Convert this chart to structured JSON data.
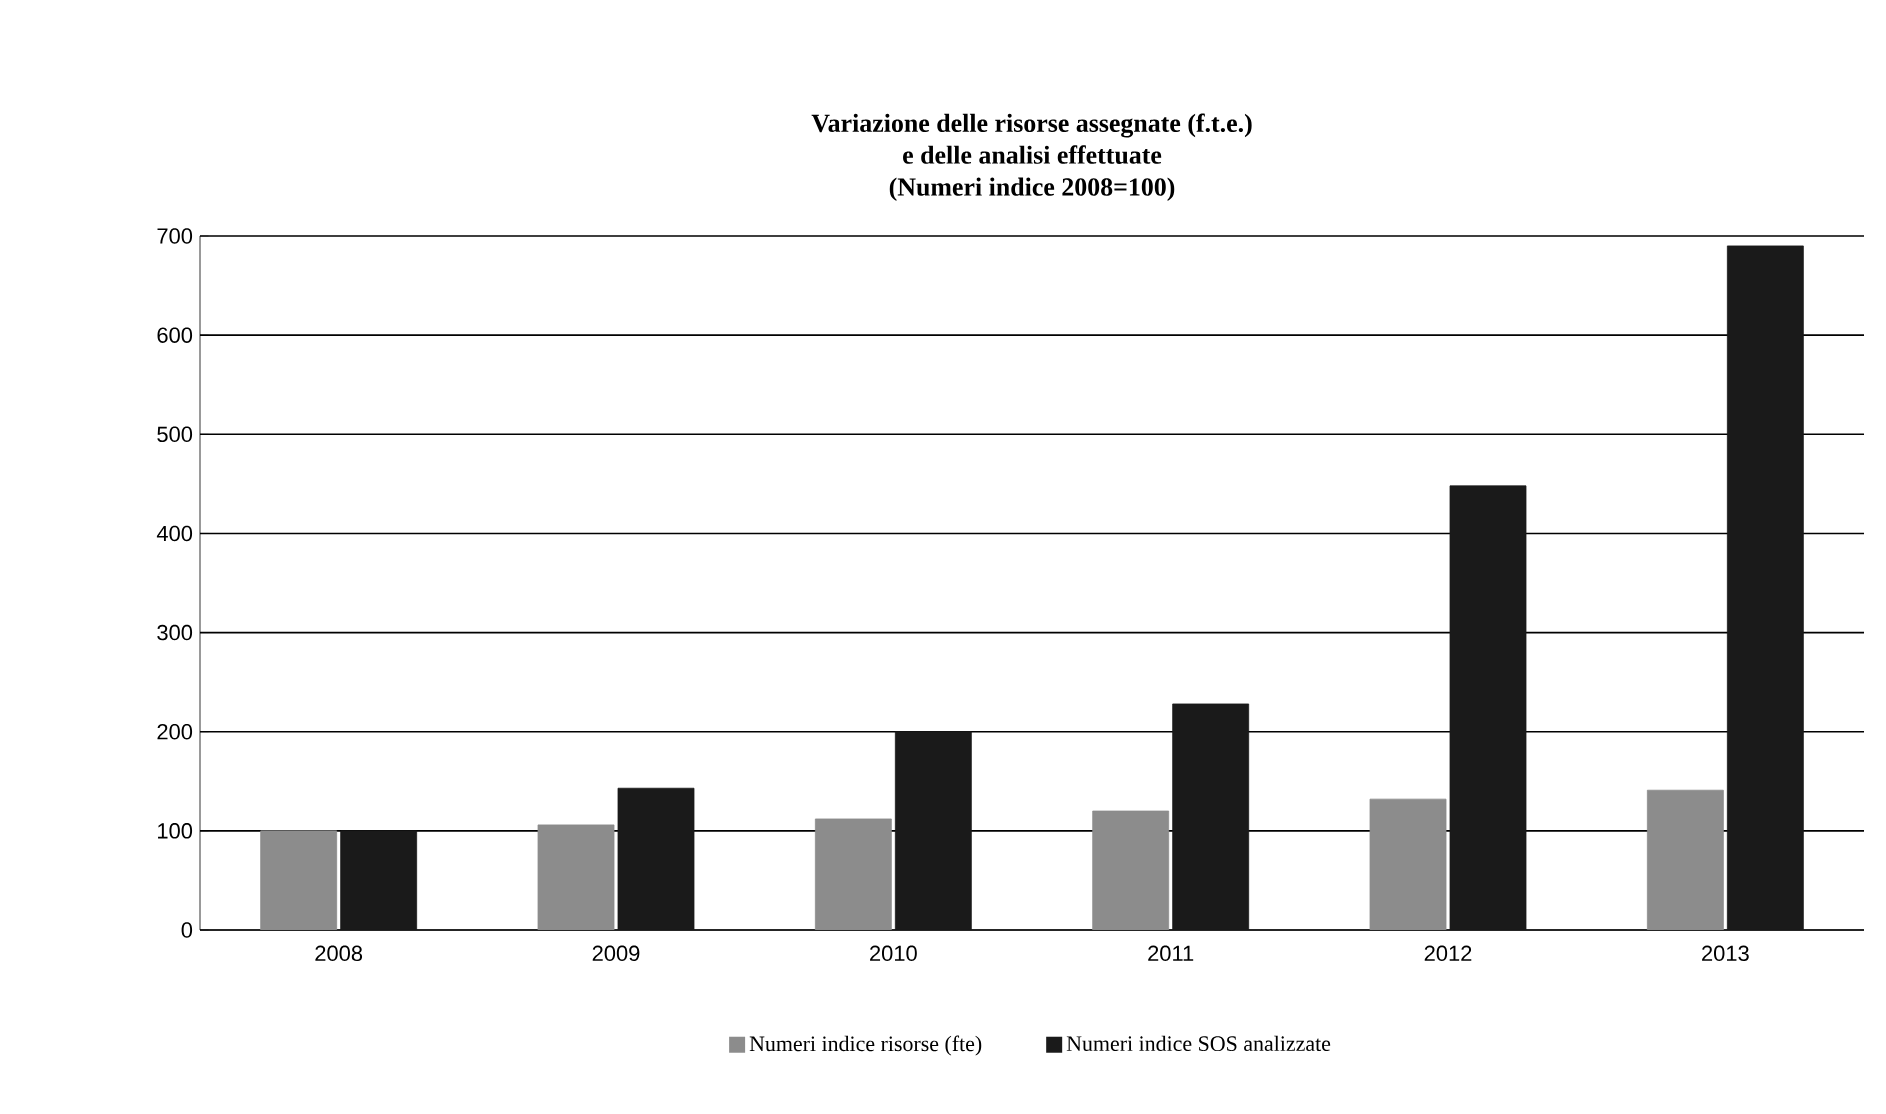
{
  "chart_data": {
    "type": "bar",
    "title": "Variazione delle risorse assegnate (f.t.e.)\ne delle analisi effettuate\n(Numeri indice 2008=100)",
    "categories": [
      "2008",
      "2009",
      "2010",
      "2011",
      "2012",
      "2013"
    ],
    "series": [
      {
        "name": "Numeri indice risorse (fte)",
        "color": "#8c8c8c",
        "values": [
          100,
          106,
          112,
          120,
          132,
          141
        ]
      },
      {
        "name": "Numeri indice SOS analizzate",
        "color": "#1a1a1a",
        "values": [
          100,
          143,
          200,
          228,
          448,
          690
        ]
      }
    ],
    "ylim": [
      0,
      700
    ],
    "yticks": [
      0,
      100,
      200,
      300,
      400,
      500,
      600,
      700
    ],
    "grid": "y",
    "legend": "bottom"
  }
}
